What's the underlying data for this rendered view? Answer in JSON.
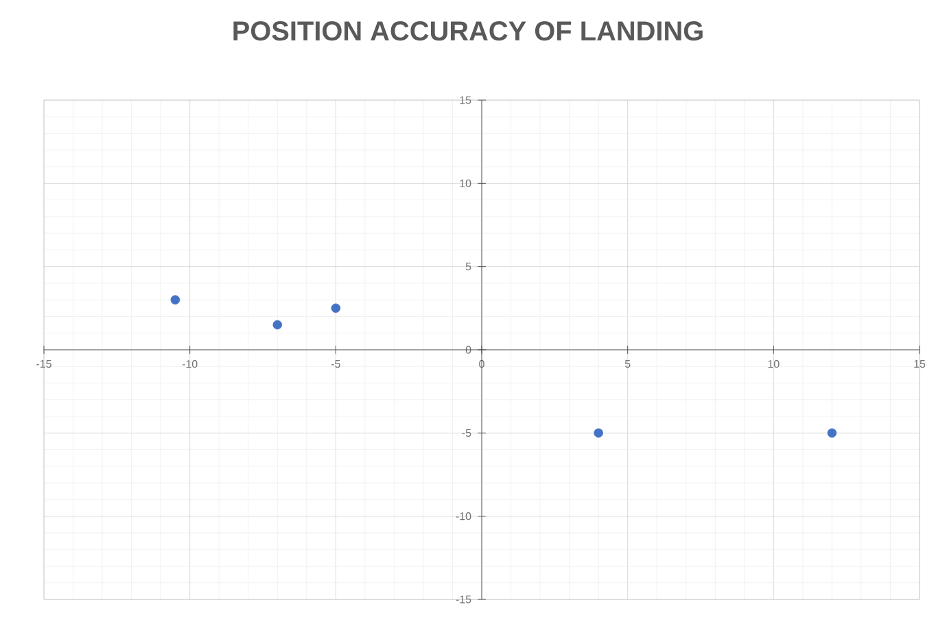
{
  "chart_data": {
    "type": "scatter",
    "title": "POSITION ACCURACY OF LANDING",
    "x": [
      -10.5,
      -7,
      -5,
      4,
      12
    ],
    "values": [
      3,
      1.5,
      2.5,
      -5,
      -5
    ],
    "color": "#4472c4",
    "marker": "circle",
    "xlim": [
      -15,
      15
    ],
    "ylim": [
      -15,
      15
    ],
    "xticks": [
      -15,
      -10,
      -5,
      0,
      5,
      10,
      15
    ],
    "yticks": [
      -15,
      -10,
      -5,
      0,
      5,
      10,
      15
    ],
    "grid": true
  }
}
